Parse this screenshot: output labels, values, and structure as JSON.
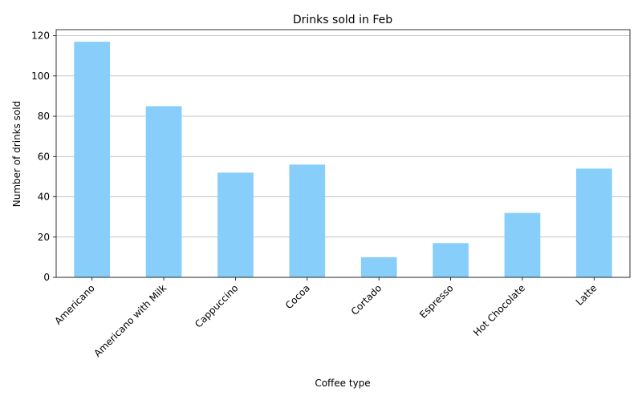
{
  "chart_data": {
    "type": "bar",
    "title": "Drinks sold in Feb",
    "xlabel": "Coffee type",
    "ylabel": "Number of drinks sold",
    "categories": [
      "Americano",
      "Americano with Milk",
      "Cappuccino",
      "Cocoa",
      "Cortado",
      "Espresso",
      "Hot Chocolate",
      "Latte"
    ],
    "values": [
      117,
      85,
      52,
      56,
      10,
      17,
      32,
      54
    ],
    "ylim": [
      0,
      123
    ],
    "yticks": [
      0,
      20,
      40,
      60,
      80,
      100,
      120
    ],
    "ytick_labels": [
      "0",
      "20",
      "40",
      "60",
      "80",
      "100",
      "120"
    ],
    "grid": "horizontal",
    "legend": false,
    "colors": {
      "bar": "#87cefa",
      "grid": "#b0b0b0",
      "axis": "#000000",
      "text": "#000000"
    }
  }
}
